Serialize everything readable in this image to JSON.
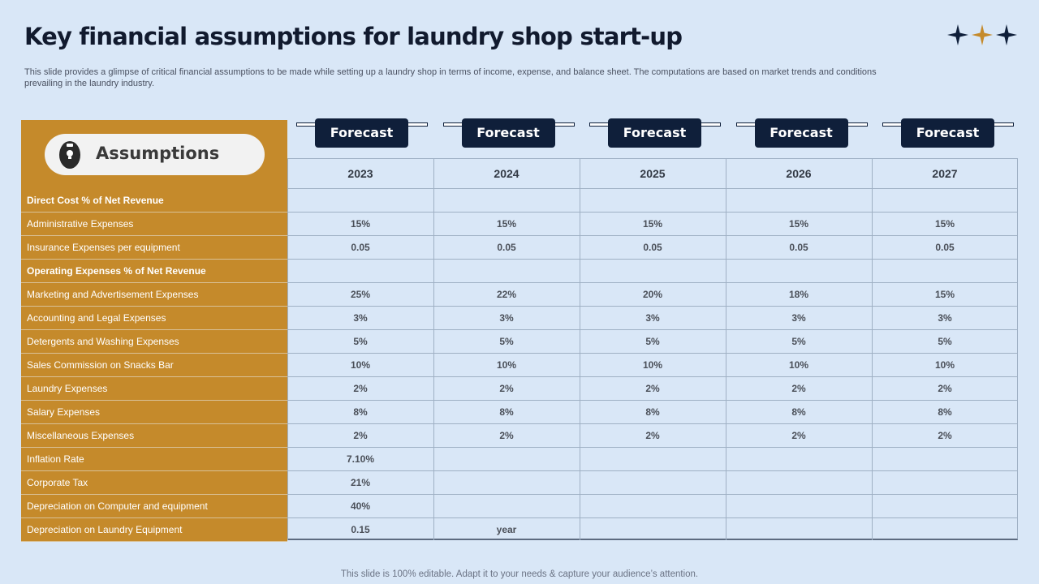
{
  "title": "Key financial assumptions for laundry shop start-up",
  "subtitle": "This slide provides a glimpse of critical financial assumptions to be made while setting up a laundry shop in terms of income, expense, and balance sheet. The computations are based on market trends and conditions prevailing in the laundry industry.",
  "header_label": "Assumptions",
  "forecast_label": "Forecast",
  "years": [
    "2023",
    "2024",
    "2025",
    "2026",
    "2027"
  ],
  "rows": [
    {
      "label": "Direct Cost % of Net Revenue",
      "bold": true,
      "values": [
        "",
        "",
        "",
        "",
        ""
      ]
    },
    {
      "label": "Administrative Expenses",
      "bold": false,
      "values": [
        "15%",
        "15%",
        "15%",
        "15%",
        "15%"
      ]
    },
    {
      "label": "Insurance Expenses per equipment",
      "bold": false,
      "values": [
        "0.05",
        "0.05",
        "0.05",
        "0.05",
        "0.05"
      ]
    },
    {
      "label": "Operating Expenses % of Net Revenue",
      "bold": true,
      "values": [
        "",
        "",
        "",
        "",
        ""
      ]
    },
    {
      "label": "Marketing and Advertisement Expenses",
      "bold": false,
      "values": [
        "25%",
        "22%",
        "20%",
        "18%",
        "15%"
      ]
    },
    {
      "label": "Accounting and Legal Expenses",
      "bold": false,
      "values": [
        "3%",
        "3%",
        "3%",
        "3%",
        "3%"
      ]
    },
    {
      "label": "Detergents and Washing Expenses",
      "bold": false,
      "values": [
        "5%",
        "5%",
        "5%",
        "5%",
        "5%"
      ]
    },
    {
      "label": "Sales Commission on Snacks Bar",
      "bold": false,
      "values": [
        "10%",
        "10%",
        "10%",
        "10%",
        "10%"
      ]
    },
    {
      "label": "Laundry Expenses",
      "bold": false,
      "values": [
        "2%",
        "2%",
        "2%",
        "2%",
        "2%"
      ]
    },
    {
      "label": "Salary Expenses",
      "bold": false,
      "values": [
        "8%",
        "8%",
        "8%",
        "8%",
        "8%"
      ]
    },
    {
      "label": "Miscellaneous Expenses",
      "bold": false,
      "values": [
        "2%",
        "2%",
        "2%",
        "2%",
        "2%"
      ]
    },
    {
      "label": "Inflation Rate",
      "bold": false,
      "values": [
        "7.10%",
        "",
        "",
        "",
        ""
      ]
    },
    {
      "label": "Corporate Tax",
      "bold": false,
      "values": [
        "21%",
        "",
        "",
        "",
        ""
      ]
    },
    {
      "label": "Depreciation on Computer and equipment",
      "bold": false,
      "values": [
        "40%",
        "",
        "",
        "",
        ""
      ]
    },
    {
      "label": "Depreciation on Laundry Equipment",
      "bold": false,
      "values": [
        "0.15",
        "year",
        "",
        "",
        ""
      ]
    }
  ],
  "footer": "This slide is 100% editable. Adapt it to your needs & capture your audience’s attention.",
  "icons": {
    "stars": "sparkle-stars-icon",
    "header": "clipboard-lightbulb-icon"
  },
  "colors": {
    "background": "#d9e7f7",
    "gold": "#c58a2b",
    "navy": "#0f1f3a",
    "star_gold": "#c58a2b"
  }
}
